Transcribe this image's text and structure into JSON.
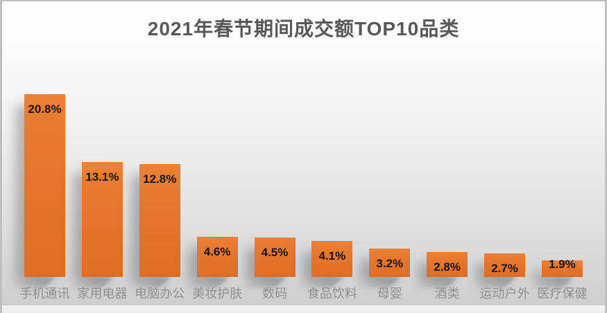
{
  "title": "2021年春节期间成交额TOP10品类",
  "colors": {
    "bar_fill": "#e5752c",
    "bar_fill_light": "#ec8034",
    "bar_fill_dark": "#e06e24",
    "title_text": "#585858",
    "value_text": "#141414",
    "category_text": "#8f8f8f",
    "background_top": "#ffffff",
    "background_bottom": "#cccccc"
  },
  "chart_data": {
    "type": "bar",
    "title": "2021年春节期间成交额TOP10品类",
    "categories": [
      "手机通讯",
      "家用电器",
      "电脑办公",
      "美妆护肤",
      "数码",
      "食品饮料",
      "母婴",
      "酒类",
      "运动户外",
      "医疗保健"
    ],
    "values": [
      20.8,
      13.1,
      12.8,
      4.6,
      4.5,
      4.1,
      3.2,
      2.8,
      2.7,
      1.9
    ],
    "value_labels": [
      "20.8%",
      "13.1%",
      "12.8%",
      "4.6%",
      "4.5%",
      "4.1%",
      "3.2%",
      "2.8%",
      "2.7%",
      "1.9%"
    ],
    "unit": "%",
    "xlabel": "",
    "ylabel": "",
    "ylim": [
      0,
      22
    ],
    "grid": false,
    "legend": false,
    "axes_visible": false,
    "label_position": "inside-top",
    "bar_color": "#e5752c"
  }
}
